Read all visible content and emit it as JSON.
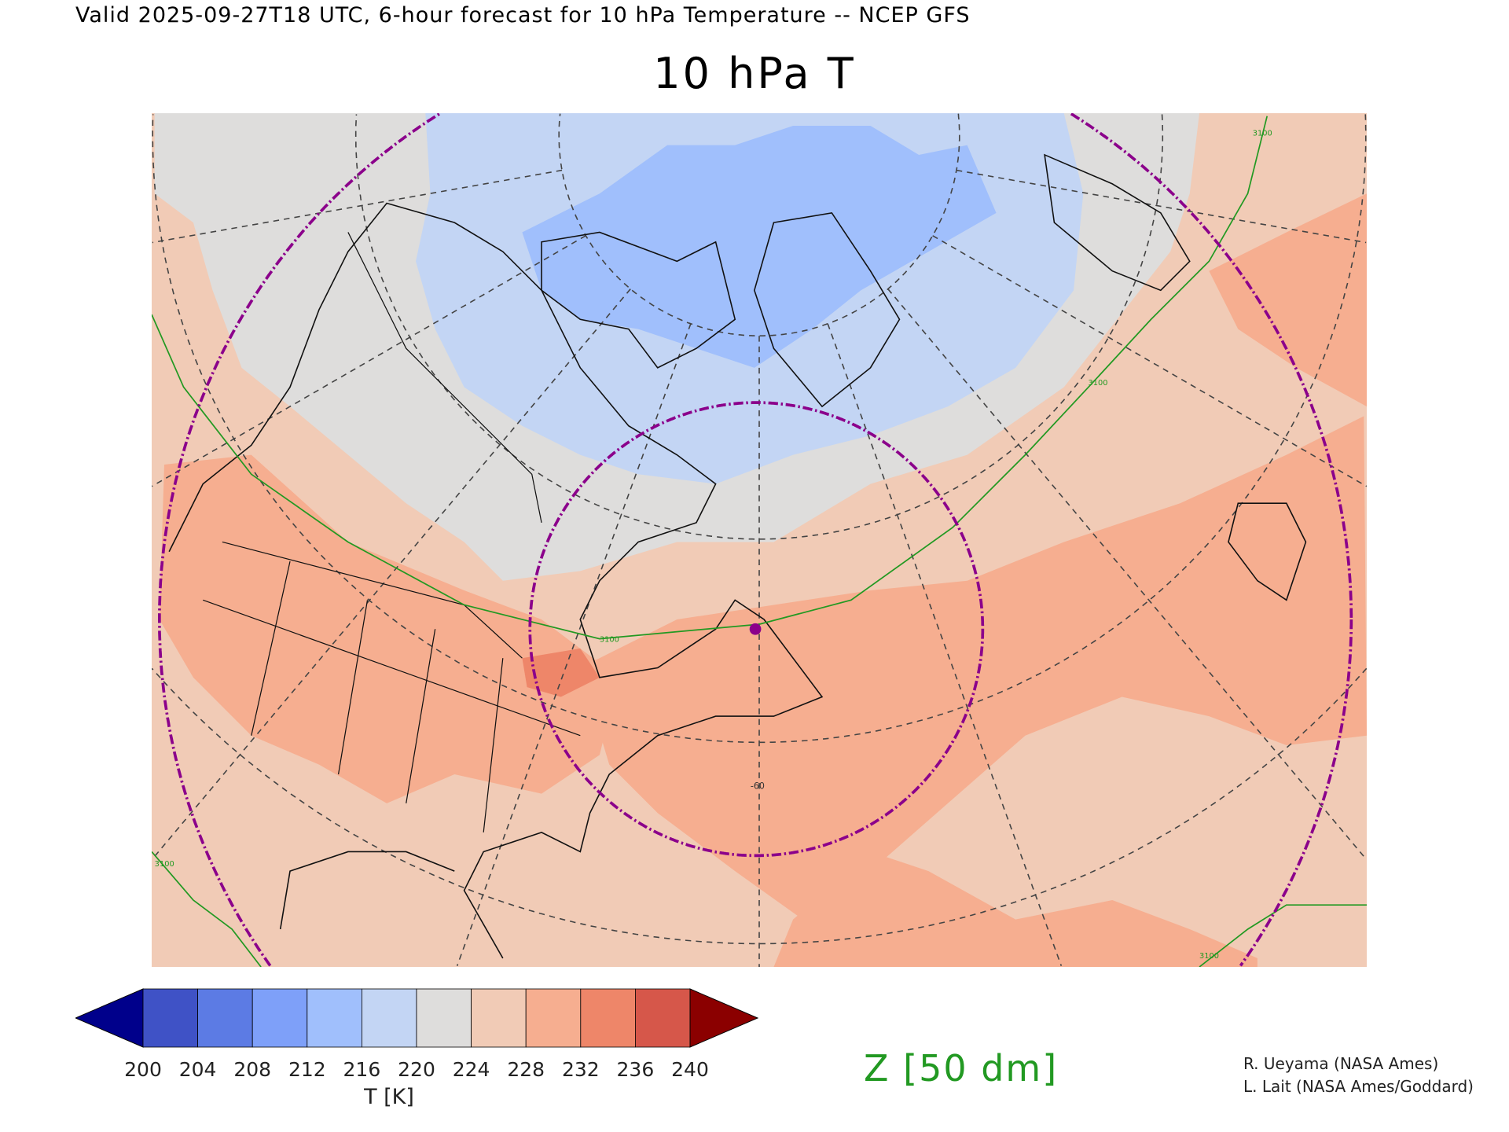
{
  "header": {
    "subtitle": "Valid 2025-09-27T18 UTC, 6-hour forecast for 10 hPa Temperature -- NCEP GFS",
    "title": "10 hPa T"
  },
  "map": {
    "contour_value": "3100",
    "contour_labels": [
      "3100",
      "3100",
      "3100",
      "3100",
      "3100"
    ],
    "meridian_label": "-60",
    "contour_color": "#229922",
    "ring_color": "#8b008b",
    "fill_colors": {
      "t216": "#c3d5f4",
      "t212": "#a0bffc",
      "t220": "#dedddc",
      "t224": "#f1cbb6",
      "t228": "#f6ae90",
      "t232": "#ee8669"
    }
  },
  "colorbar": {
    "ticks": [
      "200",
      "204",
      "208",
      "212",
      "216",
      "220",
      "224",
      "228",
      "232",
      "236",
      "240"
    ],
    "colors": [
      "#3f52c6",
      "#5c7be4",
      "#7ea0f9",
      "#a0bffc",
      "#c3d5f4",
      "#dedddc",
      "#f1cbb6",
      "#f6ae90",
      "#ee8669",
      "#d6574a"
    ],
    "under_color": "#00008b",
    "over_color": "#8b0000",
    "label": "T [K]"
  },
  "contour_legend": "Z [50 dm]",
  "credits": [
    "R. Ueyama (NASA Ames)",
    "L. Lait (NASA Ames/Goddard)"
  ]
}
